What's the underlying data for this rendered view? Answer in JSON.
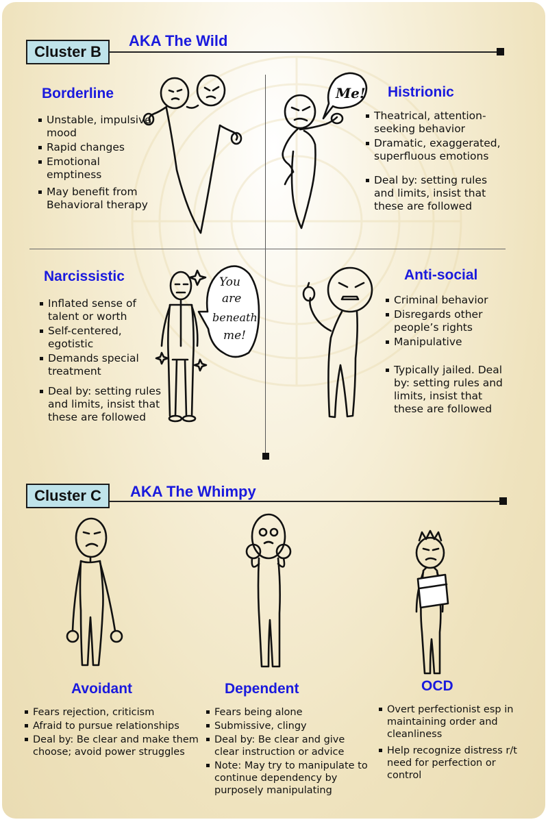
{
  "cluster_b": {
    "tag": "Cluster B",
    "aka": "AKA The Wild",
    "borderline": {
      "title": "Borderline",
      "items": [
        "Unstable, impulsive mood",
        "Rapid changes",
        "Emotional emptiness",
        "May benefit from Behavioral therapy"
      ]
    },
    "histrionic": {
      "title": "Histrionic",
      "bubble": "Me!",
      "items": [
        "Theatrical, attention-seeking behavior",
        "Dramatic, exaggerated, superfluous emotions",
        "Deal by: setting rules and limits, insist that these are followed"
      ]
    },
    "narcissistic": {
      "title": "Narcissistic",
      "bubble": [
        "You",
        "are",
        "beneath",
        "me!"
      ],
      "items": [
        "Inflated sense of talent or worth",
        "Self-centered, egotistic",
        "Demands special treatment",
        "Deal by: setting rules and limits, insist that these are followed"
      ]
    },
    "antisocial": {
      "title": "Anti-social",
      "items": [
        "Criminal behavior",
        "Disregards other people’s rights",
        "Manipulative",
        "Typically jailed. Deal by: setting rules and limits, insist that these are followed"
      ]
    }
  },
  "cluster_c": {
    "tag": "Cluster C",
    "aka": "AKA The Whimpy",
    "avoidant": {
      "title": "Avoidant",
      "items": [
        "Fears rejection, criticism",
        "Afraid to pursue relationships",
        "Deal by: Be clear and make them choose; avoid power struggles"
      ]
    },
    "dependent": {
      "title": "Dependent",
      "items": [
        "Fears being alone",
        "Submissive, clingy",
        "Deal by: Be clear and give clear instruction or advice",
        "Note: May try to manipulate to continue dependency by purposely manipulating"
      ]
    },
    "ocd": {
      "title": "OCD",
      "items": [
        "Overt perfectionist esp in maintaining order and cleanliness",
        "Help recognize distress r/t need for perfection or control"
      ]
    }
  }
}
